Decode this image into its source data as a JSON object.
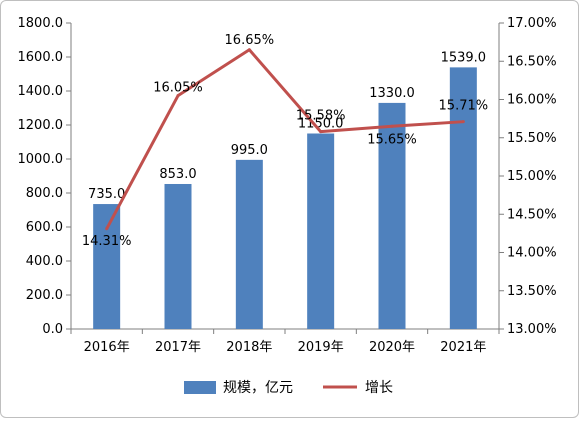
{
  "chart_data": {
    "type": "bar+line",
    "categories": [
      "2016年",
      "2017年",
      "2018年",
      "2019年",
      "2020年",
      "2021年"
    ],
    "series": [
      {
        "name": "规模，亿元",
        "type": "bar",
        "axis": "left",
        "color": "#4f81bd",
        "values": [
          735.0,
          853.0,
          995.0,
          1150.0,
          1330.0,
          1539.0
        ],
        "labels": [
          "735.0",
          "853.0",
          "995.0",
          "1150.0",
          "1330.0",
          "1539.0"
        ]
      },
      {
        "name": "增长",
        "type": "line",
        "axis": "right",
        "color": "#c0504d",
        "values": [
          14.31,
          16.05,
          16.65,
          15.58,
          15.65,
          15.71
        ],
        "labels": [
          "14.31%",
          "16.05%",
          "16.65%",
          "15.58%",
          "15.65%",
          "15.71%"
        ]
      }
    ],
    "y_left": {
      "range": [
        0,
        1800
      ],
      "ticks": [
        "0.0",
        "200.0",
        "400.0",
        "600.0",
        "800.0",
        "1000.0",
        "1200.0",
        "1400.0",
        "1600.0",
        "1800.0"
      ]
    },
    "y_right": {
      "range": [
        13.0,
        17.0
      ],
      "ticks": [
        "13.00%",
        "13.50%",
        "14.00%",
        "14.50%",
        "15.00%",
        "15.50%",
        "16.00%",
        "16.50%",
        "17.00%"
      ]
    },
    "grid": false,
    "legend_position": "bottom"
  }
}
